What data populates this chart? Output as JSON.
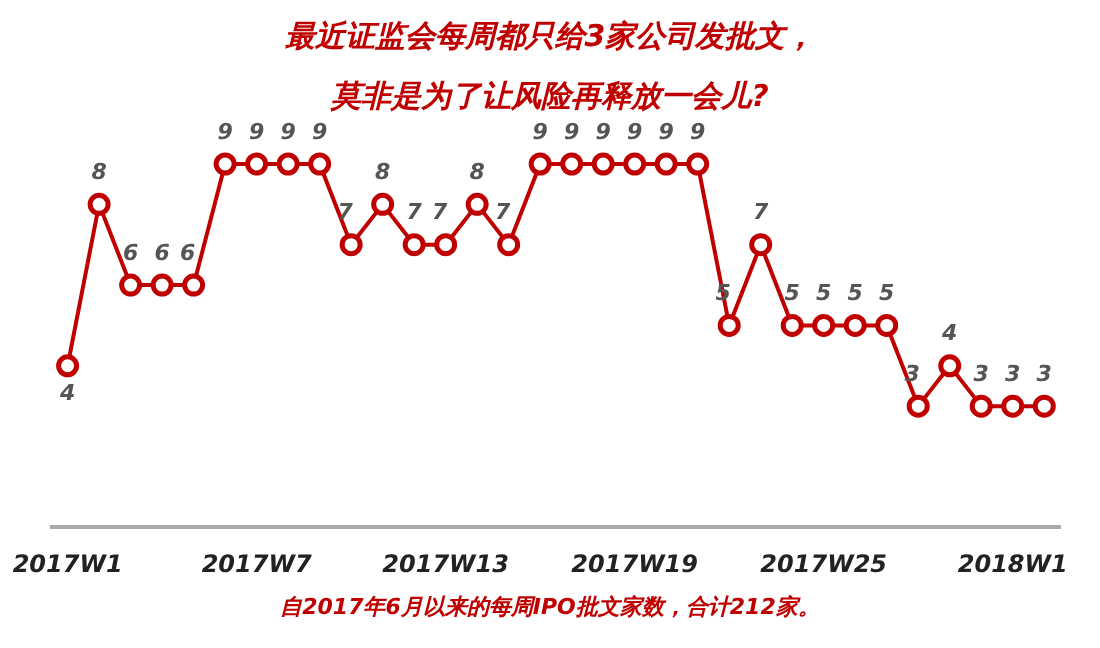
{
  "chart_data": {
    "type": "line",
    "title": "最近证监会每周都只给3家公司发批文，",
    "subtitle": "莫非是为了让风险再释放一会儿?",
    "categories": [
      "2017W1",
      null,
      null,
      null,
      null,
      null,
      "2017W7",
      null,
      null,
      null,
      null,
      null,
      "2017W13",
      null,
      null,
      null,
      null,
      null,
      "2017W19",
      null,
      null,
      null,
      null,
      null,
      "2017W25",
      null,
      null,
      null,
      null,
      null,
      "2018W1",
      null
    ],
    "series": [
      {
        "color": "#c00000",
        "values": [
          4,
          8,
          6,
          6,
          6,
          9,
          9,
          9,
          9,
          7,
          8,
          7,
          7,
          8,
          7,
          9,
          9,
          9,
          9,
          9,
          9,
          5,
          7,
          5,
          5,
          5,
          5,
          3,
          4,
          3,
          3,
          3
        ]
      }
    ],
    "data_labels": true,
    "marker": "circle",
    "line_style": "solid",
    "grid": false,
    "legend": false,
    "tick_labels": "x",
    "annotations": [
      "自2017年6月以来的每周IPO批文家数，合计212家。"
    ]
  }
}
